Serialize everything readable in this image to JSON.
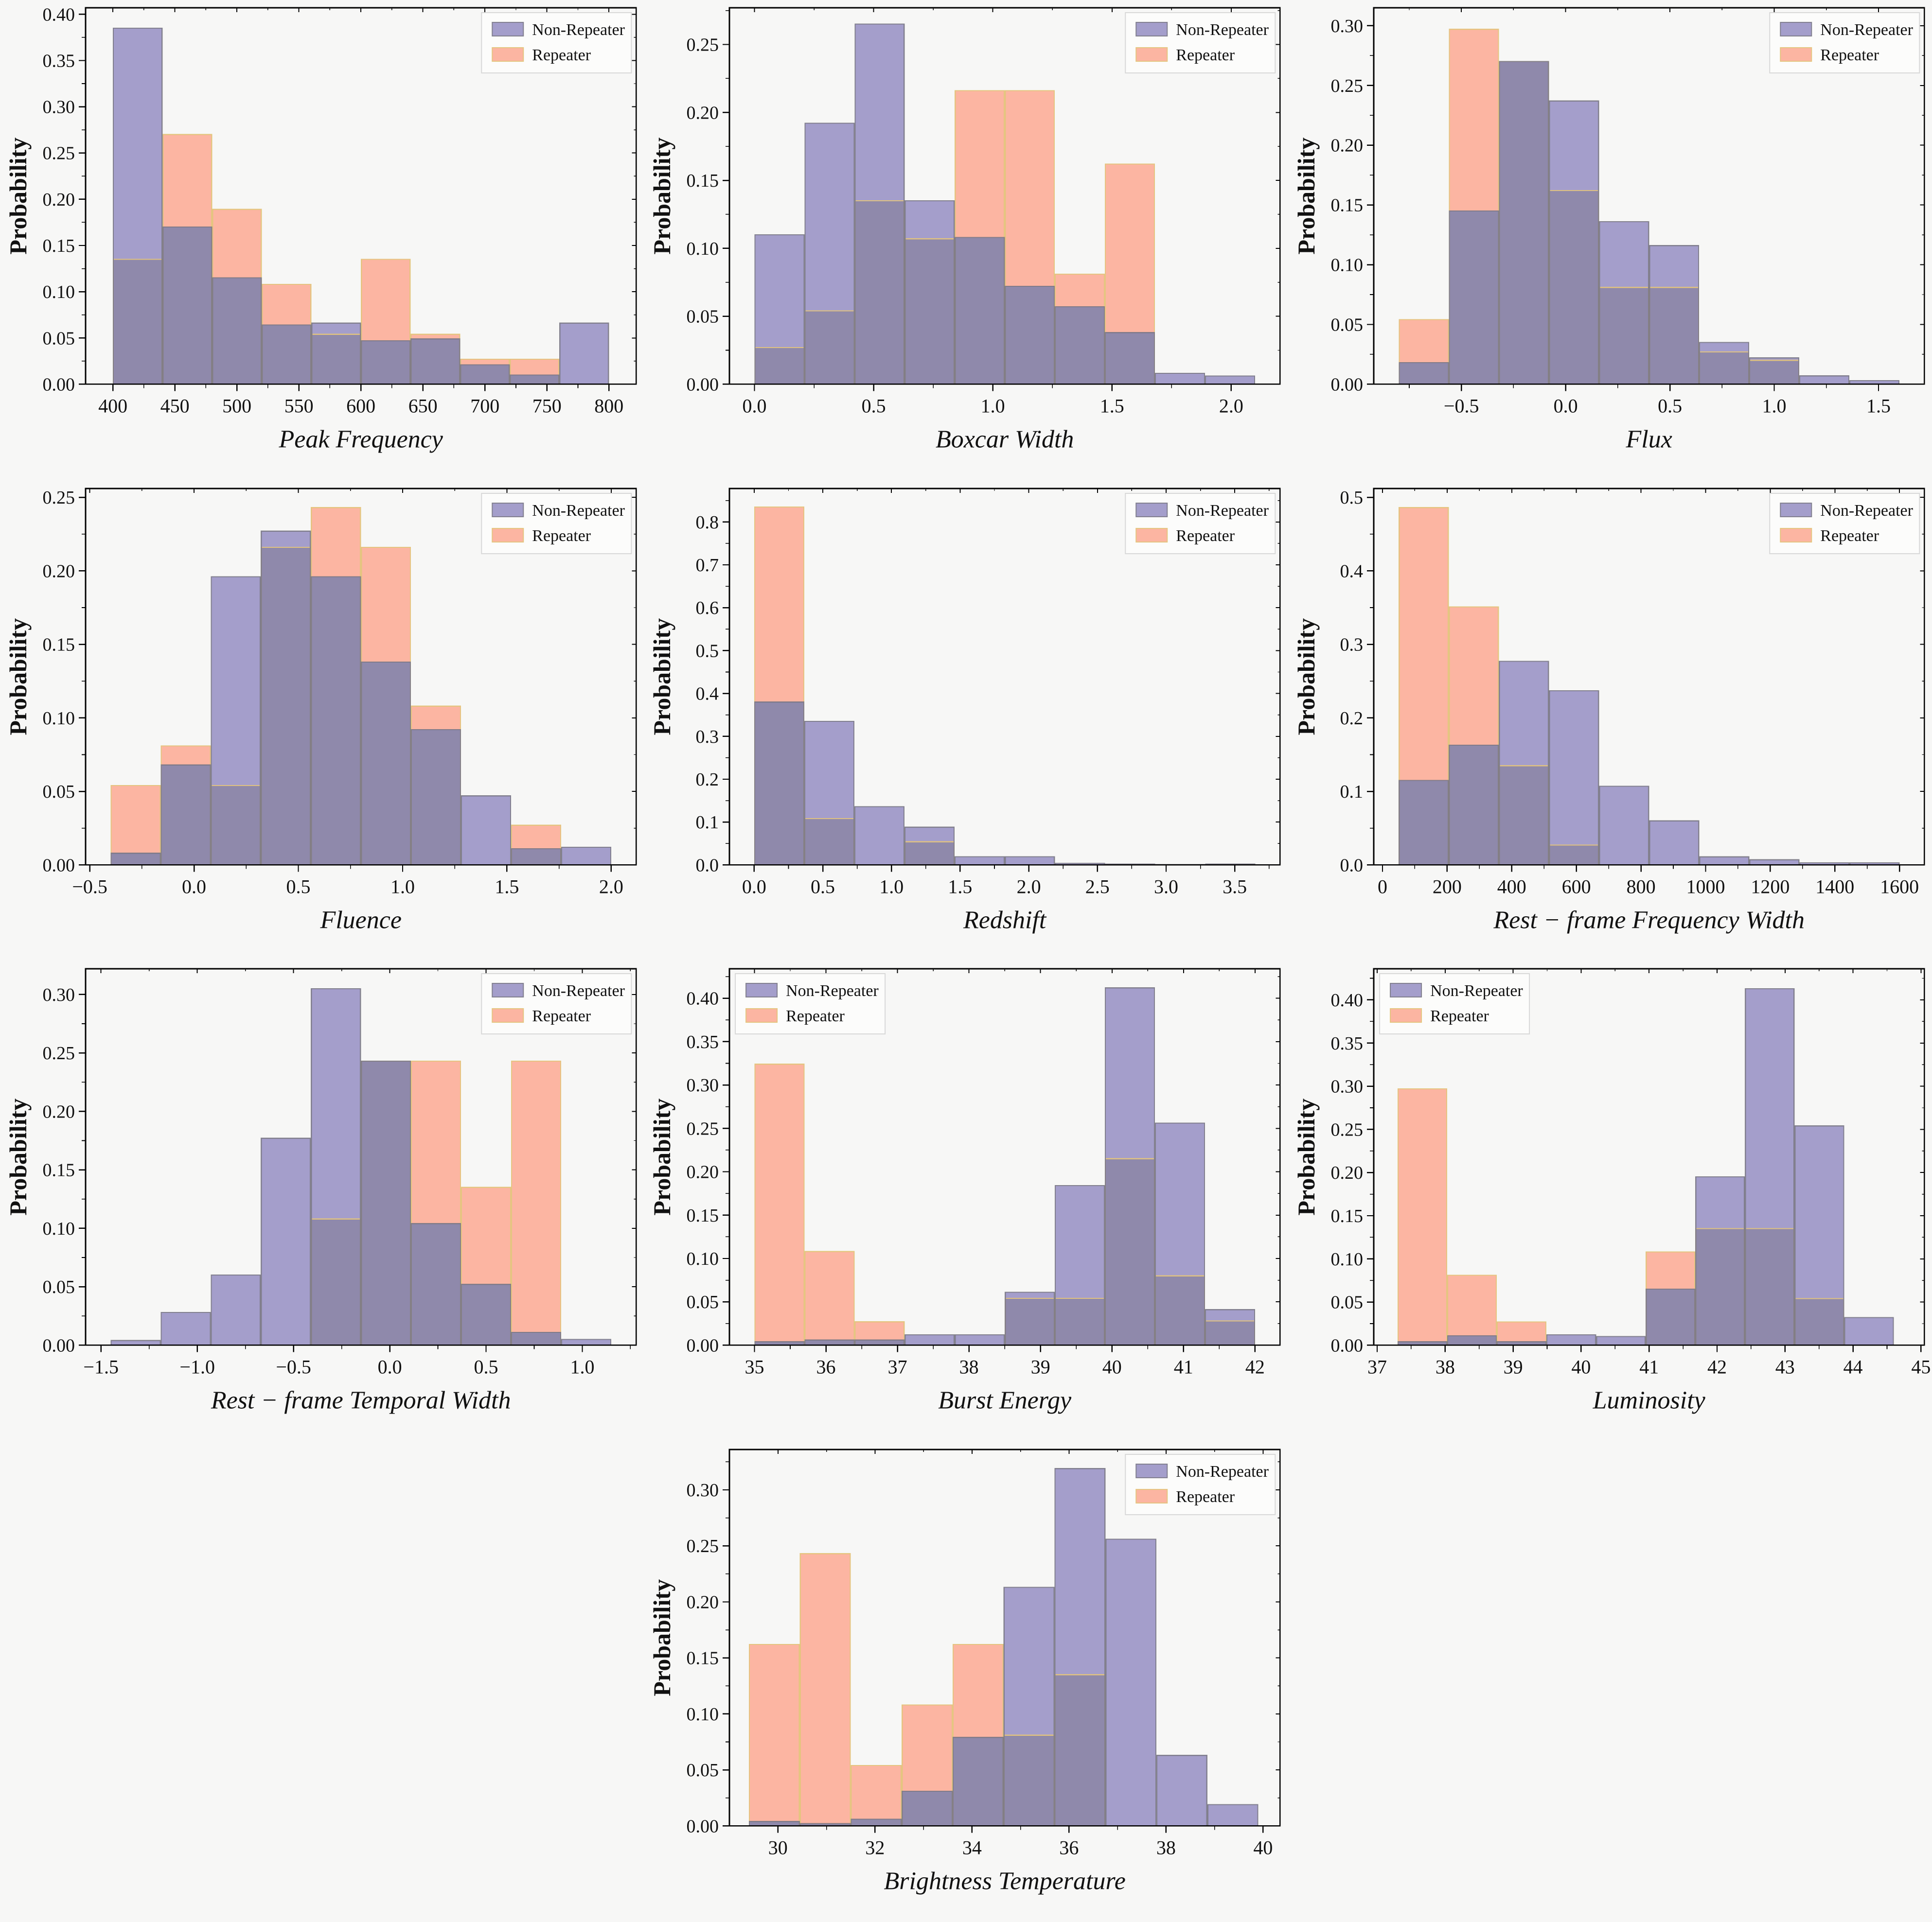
{
  "figure": {
    "ylabel": "Probability",
    "background": "#f7f7f6",
    "series_labels": [
      "Non-Repeater",
      "Repeater"
    ],
    "colors": {
      "non_repeater": "#a49ecb",
      "repeater": "#fcb5a2",
      "overlap": "#8f89ab",
      "non_repeater_edge": "rgba(122,120,133,0.9)",
      "repeater_edge": "rgba(228,196,124,0.95)",
      "axis": "#000000",
      "legend_bg": "#fcfcfb",
      "legend_border": "#d8d8d8"
    }
  },
  "chart_data": [
    {
      "id": "peak-frequency",
      "type": "histogram",
      "xlabel": "Peak Frequency",
      "ylabel": "Probability",
      "legend": "top-right",
      "bin_start": 400,
      "bin_width": 40,
      "xlim": [
        378,
        822
      ],
      "ylim": [
        0,
        0.407
      ],
      "xticks": [
        400,
        450,
        500,
        550,
        600,
        650,
        700,
        750,
        800
      ],
      "xtick_labels": [
        "400",
        "450",
        "500",
        "550",
        "600",
        "650",
        "700",
        "750",
        "800"
      ],
      "yticks": [
        0,
        0.05,
        0.1,
        0.15,
        0.2,
        0.25,
        0.3,
        0.35,
        0.4
      ],
      "ytick_labels": [
        "0.00",
        "0.05",
        "0.10",
        "0.15",
        "0.20",
        "0.25",
        "0.30",
        "0.35",
        "0.40"
      ],
      "series": [
        {
          "name": "Non-Repeater",
          "values": [
            0.385,
            0.17,
            0.115,
            0.064,
            0.066,
            0.047,
            0.049,
            0.021,
            0.01,
            0.066
          ]
        },
        {
          "name": "Repeater",
          "values": [
            0.135,
            0.27,
            0.189,
            0.108,
            0.054,
            0.135,
            0.054,
            0.027,
            0.027,
            0
          ]
        }
      ]
    },
    {
      "id": "boxcar-width",
      "type": "histogram",
      "xlabel": "Boxcar Width",
      "ylabel": "Probability",
      "legend": "top-right",
      "bin_start": 0,
      "bin_width": 0.21,
      "xlim": [
        -0.105,
        2.205
      ],
      "ylim": [
        0,
        0.277
      ],
      "xticks": [
        0,
        0.5,
        1.0,
        1.5,
        2.0
      ],
      "xtick_labels": [
        "0.0",
        "0.5",
        "1.0",
        "1.5",
        "2.0"
      ],
      "yticks": [
        0,
        0.05,
        0.1,
        0.15,
        0.2,
        0.25
      ],
      "ytick_labels": [
        "0.00",
        "0.05",
        "0.10",
        "0.15",
        "0.20",
        "0.25"
      ],
      "series": [
        {
          "name": "Non-Repeater",
          "values": [
            0.11,
            0.192,
            0.265,
            0.135,
            0.108,
            0.072,
            0.057,
            0.038,
            0.008,
            0.006
          ]
        },
        {
          "name": "Repeater",
          "values": [
            0.027,
            0.054,
            0.135,
            0.107,
            0.216,
            0.216,
            0.081,
            0.162,
            0,
            0
          ]
        }
      ]
    },
    {
      "id": "flux",
      "type": "histogram",
      "xlabel": "Flux",
      "ylabel": "Probability",
      "legend": "top-right",
      "bin_start": -0.8,
      "bin_width": 0.24,
      "xlim": [
        -0.92,
        1.72
      ],
      "ylim": [
        0,
        0.315
      ],
      "xticks": [
        -0.5,
        0,
        0.5,
        1.0,
        1.5
      ],
      "xtick_labels": [
        "−0.5",
        "0.0",
        "0.5",
        "1.0",
        "1.5"
      ],
      "yticks": [
        0,
        0.05,
        0.1,
        0.15,
        0.2,
        0.25,
        0.3
      ],
      "ytick_labels": [
        "0.00",
        "0.05",
        "0.10",
        "0.15",
        "0.20",
        "0.25",
        "0.30"
      ],
      "series": [
        {
          "name": "Non-Repeater",
          "values": [
            0.018,
            0.145,
            0.27,
            0.237,
            0.136,
            0.116,
            0.035,
            0.022,
            0.007,
            0.003
          ]
        },
        {
          "name": "Repeater",
          "values": [
            0.054,
            0.297,
            0.27,
            0.162,
            0.081,
            0.081,
            0.027,
            0.02,
            0,
            0
          ]
        }
      ]
    },
    {
      "id": "fluence",
      "type": "histogram",
      "xlabel": "Fluence",
      "ylabel": "Probability",
      "legend": "top-right",
      "bin_start": -0.4,
      "bin_width": 0.24,
      "xlim": [
        -0.52,
        2.12
      ],
      "ylim": [
        0,
        0.256
      ],
      "xticks": [
        -0.5,
        0,
        0.5,
        1.0,
        1.5,
        2.0
      ],
      "xtick_labels": [
        "−0.5",
        "0.0",
        "0.5",
        "1.0",
        "1.5",
        "2.0"
      ],
      "yticks": [
        0,
        0.05,
        0.1,
        0.15,
        0.2,
        0.25
      ],
      "ytick_labels": [
        "0.00",
        "0.05",
        "0.10",
        "0.15",
        "0.20",
        "0.25"
      ],
      "series": [
        {
          "name": "Non-Repeater",
          "values": [
            0.008,
            0.068,
            0.196,
            0.227,
            0.196,
            0.138,
            0.092,
            0.047,
            0.011,
            0.012
          ]
        },
        {
          "name": "Repeater",
          "values": [
            0.054,
            0.081,
            0.054,
            0.216,
            0.243,
            0.216,
            0.108,
            0,
            0.027,
            0
          ]
        }
      ]
    },
    {
      "id": "redshift",
      "type": "histogram",
      "xlabel": "Redshift",
      "ylabel": "Probability",
      "legend": "top-right",
      "bin_start": 0,
      "bin_width": 0.365,
      "xlim": [
        -0.18,
        3.83
      ],
      "ylim": [
        0,
        0.878
      ],
      "xticks": [
        0,
        0.5,
        1.0,
        1.5,
        2.0,
        2.5,
        3.0,
        3.5
      ],
      "xtick_labels": [
        "0.0",
        "0.5",
        "1.0",
        "1.5",
        "2.0",
        "2.5",
        "3.0",
        "3.5"
      ],
      "yticks": [
        0,
        0.1,
        0.2,
        0.3,
        0.4,
        0.5,
        0.6,
        0.7,
        0.8
      ],
      "ytick_labels": [
        "0.0",
        "0.1",
        "0.2",
        "0.3",
        "0.4",
        "0.5",
        "0.6",
        "0.7",
        "0.8"
      ],
      "series": [
        {
          "name": "Non-Repeater",
          "values": [
            0.38,
            0.335,
            0.136,
            0.088,
            0.019,
            0.019,
            0.004,
            0.002,
            0.001,
            0.002
          ]
        },
        {
          "name": "Repeater",
          "values": [
            0.835,
            0.108,
            0,
            0.054,
            0,
            0,
            0,
            0,
            0,
            0
          ]
        }
      ]
    },
    {
      "id": "rest-frame-frequency-width",
      "type": "histogram",
      "xlabel": "Rest − frame Frequency Width",
      "ylabel": "Probability",
      "legend": "top-right",
      "bin_start": 50,
      "bin_width": 155,
      "xlim": [
        -27,
        1677
      ],
      "ylim": [
        0,
        0.512
      ],
      "xticks": [
        0,
        200,
        400,
        600,
        800,
        1000,
        1200,
        1400,
        1600
      ],
      "xtick_labels": [
        "0",
        "200",
        "400",
        "600",
        "800",
        "1000",
        "1200",
        "1400",
        "1600"
      ],
      "yticks": [
        0,
        0.1,
        0.2,
        0.3,
        0.4,
        0.5
      ],
      "ytick_labels": [
        "0.0",
        "0.1",
        "0.2",
        "0.3",
        "0.4",
        "0.5"
      ],
      "series": [
        {
          "name": "Non-Repeater",
          "values": [
            0.115,
            0.163,
            0.277,
            0.237,
            0.107,
            0.06,
            0.011,
            0.007,
            0.003,
            0.003
          ]
        },
        {
          "name": "Repeater",
          "values": [
            0.486,
            0.351,
            0.135,
            0.027,
            0,
            0,
            0,
            0,
            0,
            0
          ]
        }
      ]
    },
    {
      "id": "rest-frame-temporal-width",
      "type": "histogram",
      "xlabel": "Rest − frame Temporal Width",
      "ylabel": "Probability",
      "legend": "top-right",
      "bin_start": -1.45,
      "bin_width": 0.26,
      "xlim": [
        -1.58,
        1.28
      ],
      "ylim": [
        0,
        0.322
      ],
      "xticks": [
        -1.5,
        -1.0,
        -0.5,
        0,
        0.5,
        1.0
      ],
      "xtick_labels": [
        "−1.5",
        "−1.0",
        "−0.5",
        "0.0",
        "0.5",
        "1.0"
      ],
      "yticks": [
        0,
        0.05,
        0.1,
        0.15,
        0.2,
        0.25,
        0.3
      ],
      "ytick_labels": [
        "0.00",
        "0.05",
        "0.10",
        "0.15",
        "0.20",
        "0.25",
        "0.30"
      ],
      "series": [
        {
          "name": "Non-Repeater",
          "values": [
            0.004,
            0.028,
            0.06,
            0.177,
            0.305,
            0.243,
            0.104,
            0.052,
            0.011,
            0.005
          ]
        },
        {
          "name": "Repeater",
          "values": [
            0,
            0,
            0,
            0,
            0.108,
            0.243,
            0.243,
            0.135,
            0.243,
            0
          ]
        }
      ]
    },
    {
      "id": "burst-energy",
      "type": "histogram",
      "xlabel": "Burst Energy",
      "ylabel": "Probability",
      "legend": "top-left",
      "bin_start": 35,
      "bin_width": 0.7,
      "xlim": [
        34.65,
        42.35
      ],
      "ylim": [
        0,
        0.434
      ],
      "xticks": [
        35,
        36,
        37,
        38,
        39,
        40,
        41,
        42
      ],
      "xtick_labels": [
        "35",
        "36",
        "37",
        "38",
        "39",
        "40",
        "41",
        "42"
      ],
      "yticks": [
        0,
        0.05,
        0.1,
        0.15,
        0.2,
        0.25,
        0.3,
        0.35,
        0.4
      ],
      "ytick_labels": [
        "0.00",
        "0.05",
        "0.10",
        "0.15",
        "0.20",
        "0.25",
        "0.30",
        "0.35",
        "0.40"
      ],
      "series": [
        {
          "name": "Non-Repeater",
          "values": [
            0.004,
            0.006,
            0.006,
            0.012,
            0.012,
            0.061,
            0.184,
            0.412,
            0.256,
            0.041
          ]
        },
        {
          "name": "Repeater",
          "values": [
            0.324,
            0.108,
            0.027,
            0,
            0,
            0.054,
            0.054,
            0.215,
            0.08,
            0.028
          ]
        }
      ]
    },
    {
      "id": "luminosity",
      "type": "histogram",
      "xlabel": "Luminosity",
      "ylabel": "Probability",
      "legend": "top-left",
      "bin_start": 37.3,
      "bin_width": 0.73,
      "xlim": [
        36.95,
        45.05
      ],
      "ylim": [
        0,
        0.436
      ],
      "xticks": [
        37,
        38,
        39,
        40,
        41,
        42,
        43,
        44,
        45
      ],
      "xtick_labels": [
        "37",
        "38",
        "39",
        "40",
        "41",
        "42",
        "43",
        "44",
        "45"
      ],
      "yticks": [
        0,
        0.05,
        0.1,
        0.15,
        0.2,
        0.25,
        0.3,
        0.35,
        0.4
      ],
      "ytick_labels": [
        "0.00",
        "0.05",
        "0.10",
        "0.15",
        "0.20",
        "0.25",
        "0.30",
        "0.35",
        "0.40"
      ],
      "series": [
        {
          "name": "Non-Repeater",
          "values": [
            0.004,
            0.011,
            0.004,
            0.012,
            0.01,
            0.065,
            0.195,
            0.413,
            0.254,
            0.032
          ]
        },
        {
          "name": "Repeater",
          "values": [
            0.297,
            0.081,
            0.027,
            0,
            0,
            0.108,
            0.135,
            0.135,
            0.054,
            0
          ]
        }
      ]
    },
    {
      "id": "brightness-temperature",
      "type": "histogram",
      "xlabel": "Brightness Temperature",
      "ylabel": "Probability",
      "legend": "top-right",
      "bin_start": 29.4,
      "bin_width": 1.05,
      "xlim": [
        29.0,
        40.35
      ],
      "ylim": [
        0,
        0.336
      ],
      "xticks": [
        30,
        32,
        34,
        36,
        38,
        40
      ],
      "xtick_labels": [
        "30",
        "32",
        "34",
        "36",
        "38",
        "40"
      ],
      "yticks": [
        0,
        0.05,
        0.1,
        0.15,
        0.2,
        0.25,
        0.3
      ],
      "ytick_labels": [
        "0.00",
        "0.05",
        "0.10",
        "0.15",
        "0.20",
        "0.25",
        "0.30"
      ],
      "series": [
        {
          "name": "Non-Repeater",
          "values": [
            0.004,
            0.002,
            0.006,
            0.031,
            0.079,
            0.213,
            0.319,
            0.256,
            0.063,
            0.019
          ]
        },
        {
          "name": "Repeater",
          "values": [
            0.162,
            0.243,
            0.054,
            0.108,
            0.162,
            0.081,
            0.135,
            0,
            0,
            0
          ]
        }
      ]
    }
  ]
}
